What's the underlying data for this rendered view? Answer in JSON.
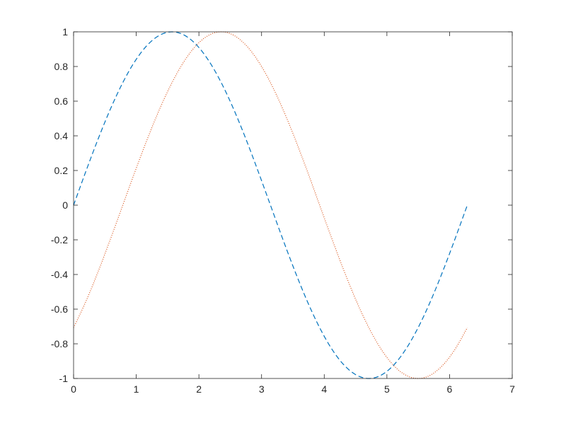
{
  "chart_data": {
    "type": "line",
    "title": "",
    "xlabel": "",
    "ylabel": "",
    "xlim": [
      0,
      7
    ],
    "ylim": [
      -1,
      1
    ],
    "grid": false,
    "x_ticks": [
      "0",
      "1",
      "2",
      "3",
      "4",
      "5",
      "6",
      "7"
    ],
    "y_ticks": [
      "-1",
      "-0.8",
      "-0.6",
      "-0.4",
      "-0.2",
      "0",
      "0.2",
      "0.4",
      "0.6",
      "0.8",
      "1"
    ],
    "x": [
      0,
      0.1963,
      0.3927,
      0.589,
      0.7854,
      0.9817,
      1.1781,
      1.3744,
      1.5708,
      1.7671,
      1.9635,
      2.1598,
      2.3562,
      2.5525,
      2.7489,
      2.9452,
      3.1416,
      3.3379,
      3.5343,
      3.7306,
      3.927,
      4.1233,
      4.3197,
      4.516,
      4.7124,
      4.9087,
      5.1051,
      5.3014,
      5.4978,
      5.6941,
      5.8905,
      6.0868,
      6.2832
    ],
    "series": [
      {
        "style": "dashed",
        "color": "#0072BD",
        "values": [
          0,
          0.1951,
          0.3827,
          0.5556,
          0.7071,
          0.8315,
          0.9239,
          0.9808,
          1,
          0.9808,
          0.9239,
          0.8315,
          0.7071,
          0.5556,
          0.3827,
          0.1951,
          0,
          -0.1951,
          -0.3827,
          -0.5556,
          -0.7071,
          -0.8315,
          -0.9239,
          -0.9808,
          -1,
          -0.9808,
          -0.9239,
          -0.8315,
          -0.7071,
          -0.5556,
          -0.3827,
          -0.1951,
          0
        ]
      },
      {
        "style": "dotted",
        "color": "#D95319",
        "values": [
          -0.7071,
          -0.5556,
          -0.3827,
          -0.1951,
          0,
          0.1951,
          0.3827,
          0.5556,
          0.7071,
          0.8315,
          0.9239,
          0.9808,
          1,
          0.9808,
          0.9239,
          0.8315,
          0.7071,
          0.5556,
          0.3827,
          0.1951,
          0,
          -0.1951,
          -0.3827,
          -0.5556,
          -0.7071,
          -0.8315,
          -0.9239,
          -0.9808,
          -1,
          -0.9808,
          -0.9239,
          -0.8315,
          -0.7071
        ]
      }
    ]
  }
}
